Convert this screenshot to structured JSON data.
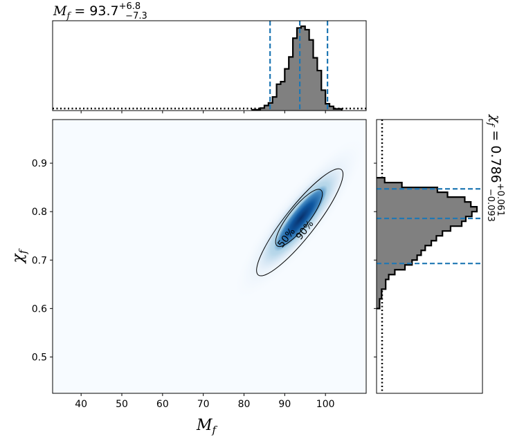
{
  "chart_data": [
    {
      "type": "heatmap",
      "panel": "joint",
      "xlabel": "M_f",
      "ylabel": "χ_f",
      "xlim": [
        33,
        110
      ],
      "ylim": [
        0.425,
        0.99
      ],
      "xticks": [
        40,
        50,
        60,
        70,
        80,
        90,
        100
      ],
      "yticks": [
        0.5,
        0.6,
        0.7,
        0.8,
        0.9
      ],
      "colormap": "Blues",
      "peak": {
        "x": 93.7,
        "y": 0.786
      },
      "contours": [
        {
          "label": "50%",
          "center": [
            93.5,
            0.787
          ],
          "semi_major": 0.56,
          "semi_minor": 0.16
        },
        {
          "label": "90%",
          "center": [
            93.7,
            0.778
          ],
          "semi_major": 1.06,
          "semi_minor": 0.24
        }
      ]
    },
    {
      "type": "bar",
      "panel": "top-marginal",
      "parameter": "M_f",
      "title": {
        "prefix": "M_f = ",
        "median": "93.7",
        "plus": "+6.8",
        "minus": "−7.3"
      },
      "median": 93.7,
      "lower": 86.4,
      "upper": 100.5,
      "bin_edges": [
        82,
        84,
        85,
        86,
        87,
        88,
        89,
        90,
        91,
        92,
        93,
        94,
        95,
        96,
        97,
        98,
        99,
        100,
        101,
        102,
        104
      ],
      "counts": [
        0.01,
        0.03,
        0.06,
        0.09,
        0.16,
        0.31,
        0.34,
        0.49,
        0.63,
        0.85,
        0.97,
        0.99,
        0.95,
        0.83,
        0.62,
        0.47,
        0.24,
        0.08,
        0.05,
        0.02
      ],
      "prior": "flat (dotted)",
      "median_line_color": "#1f77b4"
    },
    {
      "type": "bar",
      "panel": "right-marginal",
      "parameter": "χ_f",
      "title": {
        "prefix": "χ_f = ",
        "median": "0.786",
        "plus": "+0.061",
        "minus": "−0.093"
      },
      "median": 0.786,
      "lower": 0.693,
      "upper": 0.847,
      "bin_edges": [
        0.6,
        0.62,
        0.64,
        0.66,
        0.67,
        0.68,
        0.69,
        0.7,
        0.71,
        0.72,
        0.73,
        0.74,
        0.75,
        0.76,
        0.77,
        0.78,
        0.79,
        0.8,
        0.81,
        0.82,
        0.83,
        0.84,
        0.85,
        0.86,
        0.87
      ],
      "counts": [
        0.03,
        0.05,
        0.09,
        0.12,
        0.18,
        0.28,
        0.35,
        0.4,
        0.44,
        0.48,
        0.54,
        0.59,
        0.65,
        0.73,
        0.84,
        0.88,
        0.94,
        0.99,
        0.93,
        0.87,
        0.7,
        0.6,
        0.25,
        0.08
      ],
      "prior": "flat (dotted)",
      "median_line_color": "#1f77b4"
    }
  ]
}
